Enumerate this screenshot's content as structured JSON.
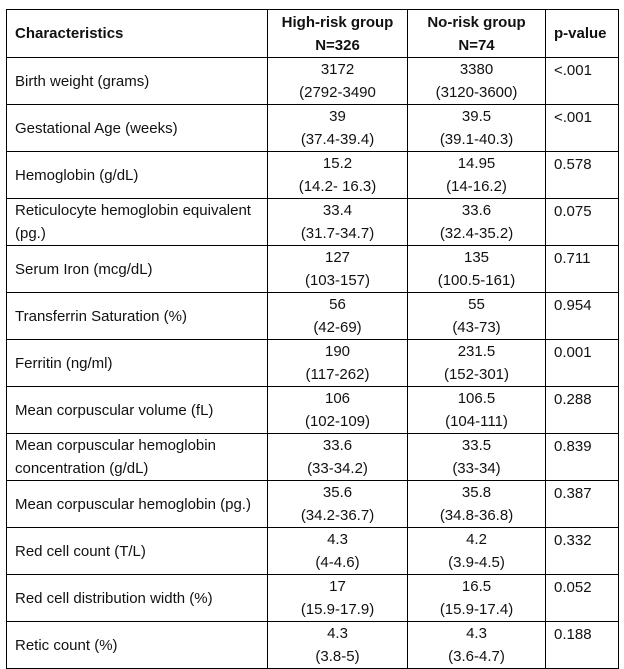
{
  "headers": {
    "characteristics": "Characteristics",
    "high_risk": {
      "line1": "High-risk group",
      "line2": "N=326"
    },
    "no_risk": {
      "line1": "No-risk group",
      "line2": "N=74"
    },
    "pvalue": "p-value"
  },
  "rows": [
    {
      "label": "Birth weight (grams)",
      "hr_med": "3172",
      "hr_iqr": "(2792-3490",
      "nr_med": "3380",
      "nr_iqr": "(3120-3600)",
      "p": "<.001",
      "p_bold": true
    },
    {
      "label": "Gestational Age (weeks)",
      "hr_med": "39",
      "hr_iqr": "(37.4-39.4)",
      "nr_med": "39.5",
      "nr_iqr": "(39.1-40.3)",
      "p": "<.001",
      "p_bold": true
    },
    {
      "label": "Hemoglobin (g/dL)",
      "hr_med": "15.2",
      "hr_iqr": "(14.2- 16.3)",
      "nr_med": "14.95",
      "nr_iqr": "(14-16.2)",
      "p": "0.578",
      "p_bold": false
    },
    {
      "label": "Reticulocyte hemoglobin equivalent (pg.)",
      "hr_med": "33.4",
      "hr_iqr": "(31.7-34.7)",
      "nr_med": "33.6",
      "nr_iqr": "(32.4-35.2)",
      "p": "0.075",
      "p_bold": false
    },
    {
      "label": "Serum Iron (mcg/dL)",
      "hr_med": "127",
      "hr_iqr": "(103-157)",
      "nr_med": "135",
      "nr_iqr": "(100.5-161)",
      "p": "0.711",
      "p_bold": false
    },
    {
      "label": "Transferrin Saturation (%)",
      "hr_med": "56",
      "hr_iqr": "(42-69)",
      "nr_med": "55",
      "nr_iqr": "(43-73)",
      "p": "0.954",
      "p_bold": false
    },
    {
      "label": "Ferritin (ng/ml)",
      "hr_med": "190",
      "hr_iqr": "(117-262)",
      "nr_med": "231.5",
      "nr_iqr": "(152-301)",
      "p": "0.001",
      "p_bold": true
    },
    {
      "label": "Mean corpuscular volume (fL)",
      "hr_med": "106",
      "hr_iqr": "(102-109)",
      "nr_med": "106.5",
      "nr_iqr": "(104-111)",
      "p": "0.288",
      "p_bold": false
    },
    {
      "label": "Mean corpuscular hemoglobin concentration (g/dL)",
      "hr_med": "33.6",
      "hr_iqr": "(33-34.2)",
      "nr_med": "33.5",
      "nr_iqr": "(33-34)",
      "p": "0.839",
      "p_bold": false
    },
    {
      "label": "Mean corpuscular hemoglobin (pg.)",
      "hr_med": "35.6",
      "hr_iqr": "(34.2-36.7)",
      "nr_med": "35.8",
      "nr_iqr": "(34.8-36.8)",
      "p": "0.387",
      "p_bold": false
    },
    {
      "label": "Red cell count (T/L)",
      "hr_med": "4.3",
      "hr_iqr": "(4-4.6)",
      "nr_med": "4.2",
      "nr_iqr": "(3.9-4.5)",
      "p": "0.332",
      "p_bold": false
    },
    {
      "label": "Red cell distribution width (%)",
      "hr_med": "17",
      "hr_iqr": "(15.9-17.9)",
      "nr_med": "16.5",
      "nr_iqr": "(15.9-17.4)",
      "p": "0.052",
      "p_bold": false
    },
    {
      "label": "Retic count (%)",
      "hr_med": "4.3",
      "hr_iqr": "(3.8-5)",
      "nr_med": "4.3",
      "nr_iqr": "(3.6-4.7)",
      "p": "0.188",
      "p_bold": false
    }
  ]
}
